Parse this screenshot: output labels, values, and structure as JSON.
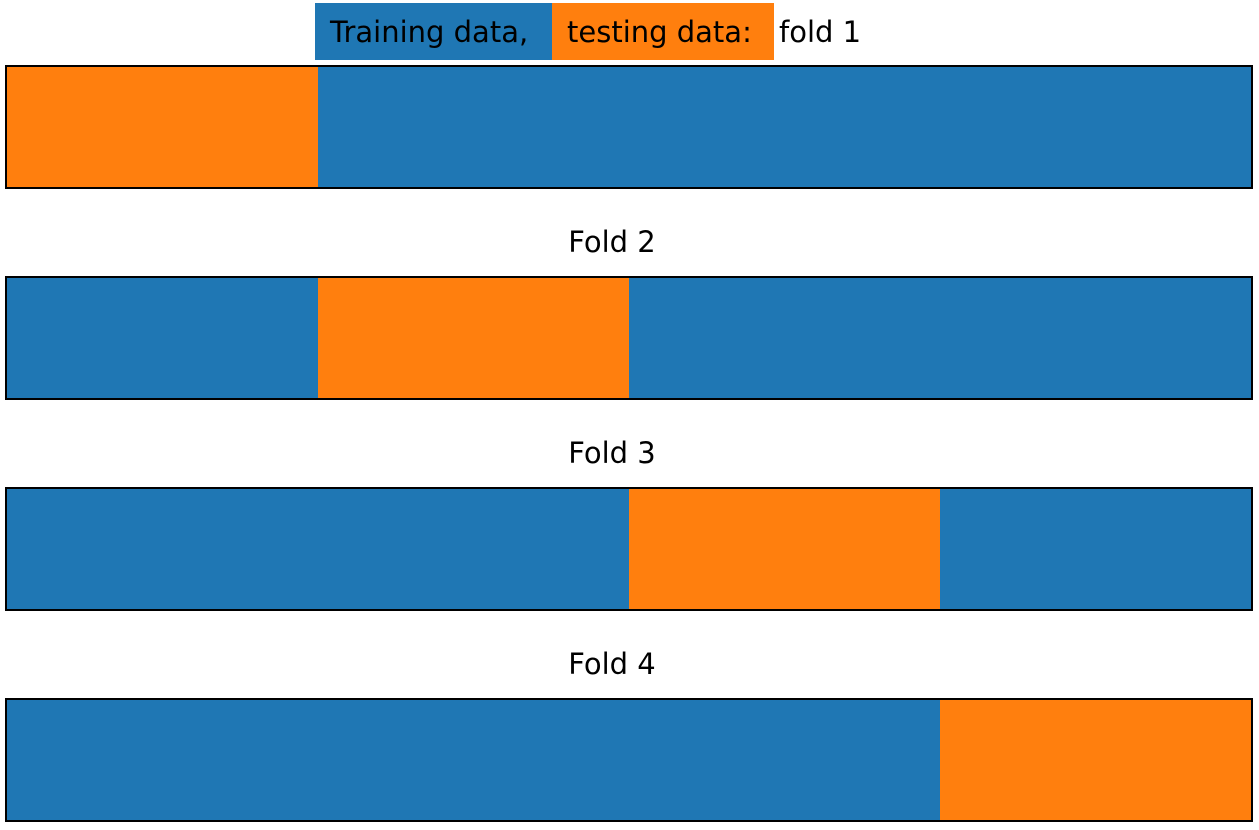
{
  "colors": {
    "training": "#1f77b4",
    "testing": "#ff7f0e",
    "border": "#000000",
    "background": "#ffffff"
  },
  "title": {
    "training_label": "Training data,",
    "testing_label": "testing data:",
    "fold_label": "fold 1"
  },
  "folds": [
    {
      "label": "",
      "test_index": 0
    },
    {
      "label": "Fold 2",
      "test_index": 1
    },
    {
      "label": "Fold 3",
      "test_index": 2
    },
    {
      "label": "Fold 4",
      "test_index": 3
    }
  ],
  "segments_per_fold": 4
}
